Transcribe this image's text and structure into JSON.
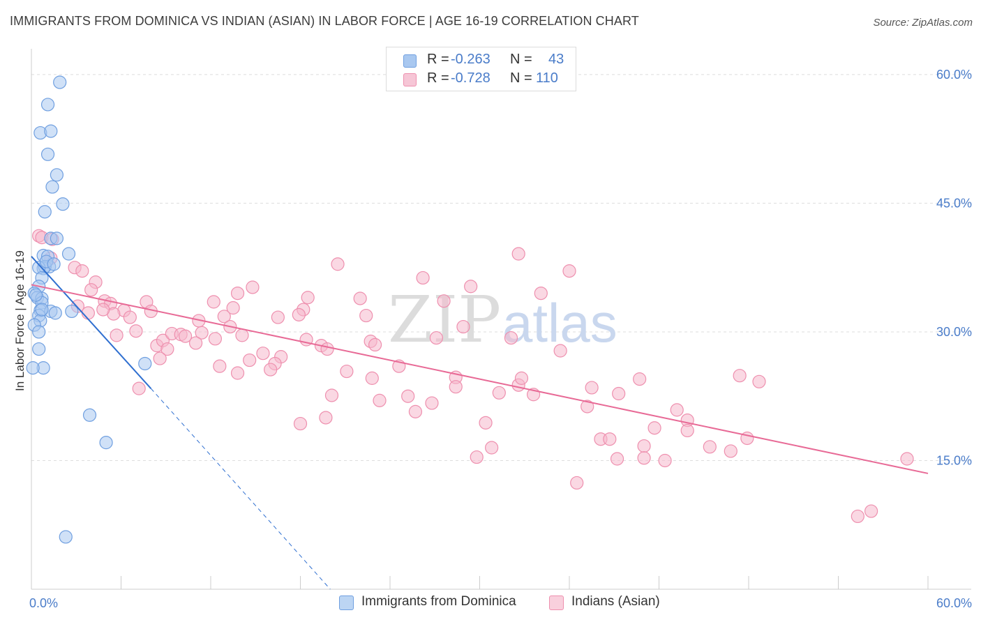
{
  "title": "IMMIGRANTS FROM DOMINICA VS INDIAN (ASIAN) IN LABOR FORCE | AGE 16-19 CORRELATION CHART",
  "source": "Source: ZipAtlas.com",
  "watermark": {
    "zip": "ZIP",
    "atlas": "atlas"
  },
  "stats": [
    {
      "r_label": "R =",
      "r": "-0.263",
      "n_label": "N =",
      "n": "43"
    },
    {
      "r_label": "R =",
      "r": "-0.728",
      "n_label": "N =",
      "n": "110"
    }
  ],
  "legend": [
    {
      "label": "Immigrants from Dominica"
    },
    {
      "label": "Indians (Asian)"
    }
  ],
  "colors": {
    "blue_fill": "#a9c8f0",
    "blue_stroke": "#6f9fe0",
    "blue_line": "#2f6fd0",
    "pink_fill": "#f6b8cc",
    "pink_stroke": "#ee8fae",
    "pink_line": "#e86a96",
    "axis_text": "#4a7cc9",
    "grid": "#dddddd"
  },
  "chart_data": {
    "type": "scatter",
    "title": "IMMIGRANTS FROM DOMINICA VS INDIAN (ASIAN) IN LABOR FORCE | AGE 16-19 CORRELATION CHART",
    "xlabel": "",
    "ylabel": "In Labor Force | Age 16-19",
    "xlim": [
      0,
      60
    ],
    "ylim": [
      0,
      63
    ],
    "x_tick_labels": [
      "0.0%",
      "60.0%"
    ],
    "y_ticks": [
      15,
      30,
      45,
      60
    ],
    "y_tick_labels": [
      "15.0%",
      "30.0%",
      "45.0%",
      "60.0%"
    ],
    "grid": true,
    "series": [
      {
        "name": "Immigrants from Dominica",
        "color": "blue",
        "points": [
          [
            1.9,
            59.1
          ],
          [
            1.1,
            56.5
          ],
          [
            0.6,
            53.2
          ],
          [
            1.3,
            53.4
          ],
          [
            1.1,
            50.7
          ],
          [
            1.7,
            48.3
          ],
          [
            1.4,
            46.9
          ],
          [
            2.1,
            44.9
          ],
          [
            0.9,
            44.0
          ],
          [
            1.3,
            40.9
          ],
          [
            1.7,
            40.9
          ],
          [
            0.8,
            38.9
          ],
          [
            2.5,
            39.1
          ],
          [
            1.1,
            38.8
          ],
          [
            1.2,
            37.6
          ],
          [
            0.8,
            37.4
          ],
          [
            0.9,
            37.6
          ],
          [
            0.5,
            37.5
          ],
          [
            0.7,
            36.3
          ],
          [
            0.5,
            35.3
          ],
          [
            0.2,
            34.5
          ],
          [
            0.4,
            34.0
          ],
          [
            0.7,
            33.9
          ],
          [
            0.7,
            33.4
          ],
          [
            0.6,
            32.5
          ],
          [
            1.3,
            32.4
          ],
          [
            1.6,
            32.2
          ],
          [
            2.7,
            32.4
          ],
          [
            0.5,
            31.9
          ],
          [
            0.6,
            31.3
          ],
          [
            0.2,
            30.8
          ],
          [
            0.5,
            30.0
          ],
          [
            0.5,
            28.0
          ],
          [
            0.8,
            25.8
          ],
          [
            0.1,
            25.8
          ],
          [
            7.6,
            26.3
          ],
          [
            3.9,
            20.3
          ],
          [
            5.0,
            17.1
          ],
          [
            2.3,
            6.1
          ],
          [
            1.0,
            38.2
          ],
          [
            0.3,
            34.3
          ],
          [
            0.7,
            32.6
          ],
          [
            1.5,
            37.9
          ]
        ]
      },
      {
        "name": "Indians (Asian)",
        "color": "pink",
        "points": [
          [
            0.5,
            41.2
          ],
          [
            0.7,
            41.0
          ],
          [
            1.4,
            40.8
          ],
          [
            1.3,
            38.6
          ],
          [
            2.9,
            37.5
          ],
          [
            3.4,
            37.1
          ],
          [
            4.3,
            35.8
          ],
          [
            4.0,
            34.9
          ],
          [
            3.1,
            33.0
          ],
          [
            4.9,
            33.6
          ],
          [
            5.3,
            33.3
          ],
          [
            6.2,
            32.5
          ],
          [
            5.5,
            32.1
          ],
          [
            6.6,
            31.7
          ],
          [
            7.7,
            33.5
          ],
          [
            8.0,
            32.4
          ],
          [
            7.0,
            30.1
          ],
          [
            5.7,
            29.6
          ],
          [
            8.4,
            28.4
          ],
          [
            8.8,
            29.0
          ],
          [
            9.4,
            29.8
          ],
          [
            9.1,
            28.0
          ],
          [
            8.6,
            26.9
          ],
          [
            10.0,
            29.7
          ],
          [
            10.3,
            29.5
          ],
          [
            11.4,
            29.9
          ],
          [
            11.0,
            28.7
          ],
          [
            11.2,
            31.3
          ],
          [
            12.2,
            33.5
          ],
          [
            12.9,
            31.8
          ],
          [
            12.3,
            29.2
          ],
          [
            12.6,
            26.0
          ],
          [
            13.5,
            32.8
          ],
          [
            13.3,
            30.6
          ],
          [
            14.1,
            29.6
          ],
          [
            13.8,
            34.5
          ],
          [
            14.8,
            35.2
          ],
          [
            15.5,
            27.5
          ],
          [
            14.6,
            26.7
          ],
          [
            13.8,
            25.2
          ],
          [
            16.5,
            31.7
          ],
          [
            16.7,
            27.1
          ],
          [
            16.3,
            26.3
          ],
          [
            16.0,
            25.6
          ],
          [
            18.2,
            32.6
          ],
          [
            17.9,
            32.0
          ],
          [
            18.5,
            34.0
          ],
          [
            18.4,
            29.1
          ],
          [
            18.0,
            19.3
          ],
          [
            19.4,
            28.4
          ],
          [
            19.8,
            28.0
          ],
          [
            19.7,
            20.0
          ],
          [
            20.1,
            22.6
          ],
          [
            20.5,
            37.9
          ],
          [
            21.1,
            25.4
          ],
          [
            22.0,
            33.9
          ],
          [
            22.4,
            31.9
          ],
          [
            22.8,
            24.6
          ],
          [
            22.7,
            28.9
          ],
          [
            23.3,
            22.0
          ],
          [
            23.0,
            28.5
          ],
          [
            24.6,
            26.0
          ],
          [
            25.2,
            22.5
          ],
          [
            25.7,
            20.7
          ],
          [
            26.2,
            36.3
          ],
          [
            26.8,
            21.7
          ],
          [
            27.1,
            29.3
          ],
          [
            27.6,
            33.6
          ],
          [
            28.4,
            24.7
          ],
          [
            28.4,
            23.6
          ],
          [
            28.9,
            30.6
          ],
          [
            29.4,
            35.3
          ],
          [
            29.8,
            15.4
          ],
          [
            30.4,
            19.4
          ],
          [
            30.8,
            16.5
          ],
          [
            31.3,
            22.9
          ],
          [
            32.1,
            29.3
          ],
          [
            32.6,
            23.8
          ],
          [
            32.8,
            24.6
          ],
          [
            32.6,
            39.1
          ],
          [
            33.6,
            22.7
          ],
          [
            34.1,
            34.5
          ],
          [
            35.4,
            27.8
          ],
          [
            36.0,
            37.1
          ],
          [
            36.5,
            12.4
          ],
          [
            37.2,
            21.3
          ],
          [
            37.5,
            23.5
          ],
          [
            38.1,
            17.5
          ],
          [
            38.7,
            17.5
          ],
          [
            39.2,
            15.2
          ],
          [
            39.3,
            22.8
          ],
          [
            40.7,
            24.5
          ],
          [
            41.0,
            16.7
          ],
          [
            41.0,
            15.3
          ],
          [
            41.7,
            18.8
          ],
          [
            42.4,
            15.0
          ],
          [
            43.2,
            20.9
          ],
          [
            43.9,
            19.7
          ],
          [
            43.9,
            18.5
          ],
          [
            45.4,
            16.6
          ],
          [
            46.8,
            16.1
          ],
          [
            47.4,
            24.9
          ],
          [
            47.9,
            17.6
          ],
          [
            48.7,
            24.2
          ],
          [
            55.3,
            8.5
          ],
          [
            56.2,
            9.1
          ],
          [
            58.6,
            15.2
          ],
          [
            3.8,
            32.2
          ],
          [
            4.8,
            32.6
          ],
          [
            7.2,
            23.4
          ]
        ]
      }
    ],
    "trendlines": [
      {
        "series": "Immigrants from Dominica",
        "x0": 0.0,
        "y0": 38.8,
        "x1": 8.0,
        "y1": 23.4,
        "extended_to_x": 20.0,
        "extended_to_y": 0.0
      },
      {
        "series": "Indians (Asian)",
        "x0": 0.0,
        "y0": 35.5,
        "x1": 60.0,
        "y1": 13.5
      }
    ]
  }
}
